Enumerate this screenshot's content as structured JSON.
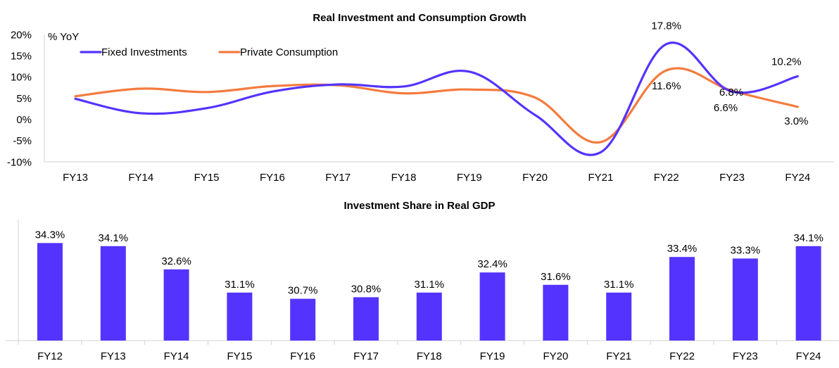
{
  "chart_data": [
    {
      "type": "line",
      "title": "Real Investment and Consumption Growth",
      "ylabel": "% YoY",
      "ylim": [
        -10,
        20
      ],
      "yticks": [
        "-10%",
        "-5%",
        "0%",
        "5%",
        "10%",
        "15%",
        "20%"
      ],
      "categories": [
        "FY13",
        "FY14",
        "FY15",
        "FY16",
        "FY17",
        "FY18",
        "FY19",
        "FY20",
        "FY21",
        "FY22",
        "FY23",
        "FY24"
      ],
      "series": [
        {
          "name": "Fixed Investments",
          "color": "#5533ff",
          "values": [
            4.9,
            1.5,
            2.7,
            6.6,
            8.3,
            7.8,
            11.3,
            1.1,
            -7.7,
            17.8,
            6.6,
            10.2
          ]
        },
        {
          "name": "Private Consumption",
          "color": "#f47b3f",
          "values": [
            5.5,
            7.3,
            6.5,
            7.9,
            8.1,
            6.2,
            7.1,
            5.2,
            -5.3,
            11.6,
            6.8,
            3.0
          ]
        }
      ],
      "data_labels": [
        {
          "text": "17.8%",
          "category": "FY22",
          "series": 0
        },
        {
          "text": "11.6%",
          "category": "FY22",
          "series": 1
        },
        {
          "text": "6.8%",
          "category": "FY23",
          "series": 1
        },
        {
          "text": "6.6%",
          "category": "FY23",
          "series": 0
        },
        {
          "text": "10.2%",
          "category": "FY24",
          "series": 0
        },
        {
          "text": "3.0%",
          "category": "FY24",
          "series": 1
        }
      ],
      "legend": "top-left",
      "grid": false
    },
    {
      "type": "bar",
      "title": "Investment Share in Real GDP",
      "categories": [
        "FY12",
        "FY13",
        "FY14",
        "FY15",
        "FY16",
        "FY17",
        "FY18",
        "FY19",
        "FY20",
        "FY21",
        "FY22",
        "FY23",
        "FY24"
      ],
      "values": [
        34.3,
        34.1,
        32.6,
        31.1,
        30.7,
        30.8,
        31.1,
        32.4,
        31.6,
        31.1,
        33.4,
        33.3,
        34.1
      ],
      "labels": [
        "34.3%",
        "34.1%",
        "32.6%",
        "31.1%",
        "30.7%",
        "30.8%",
        "31.1%",
        "32.4%",
        "31.6%",
        "31.1%",
        "33.4%",
        "33.3%",
        "34.1%"
      ],
      "color": "#5533ff",
      "ylim": [
        28,
        35
      ],
      "grid": false
    }
  ]
}
